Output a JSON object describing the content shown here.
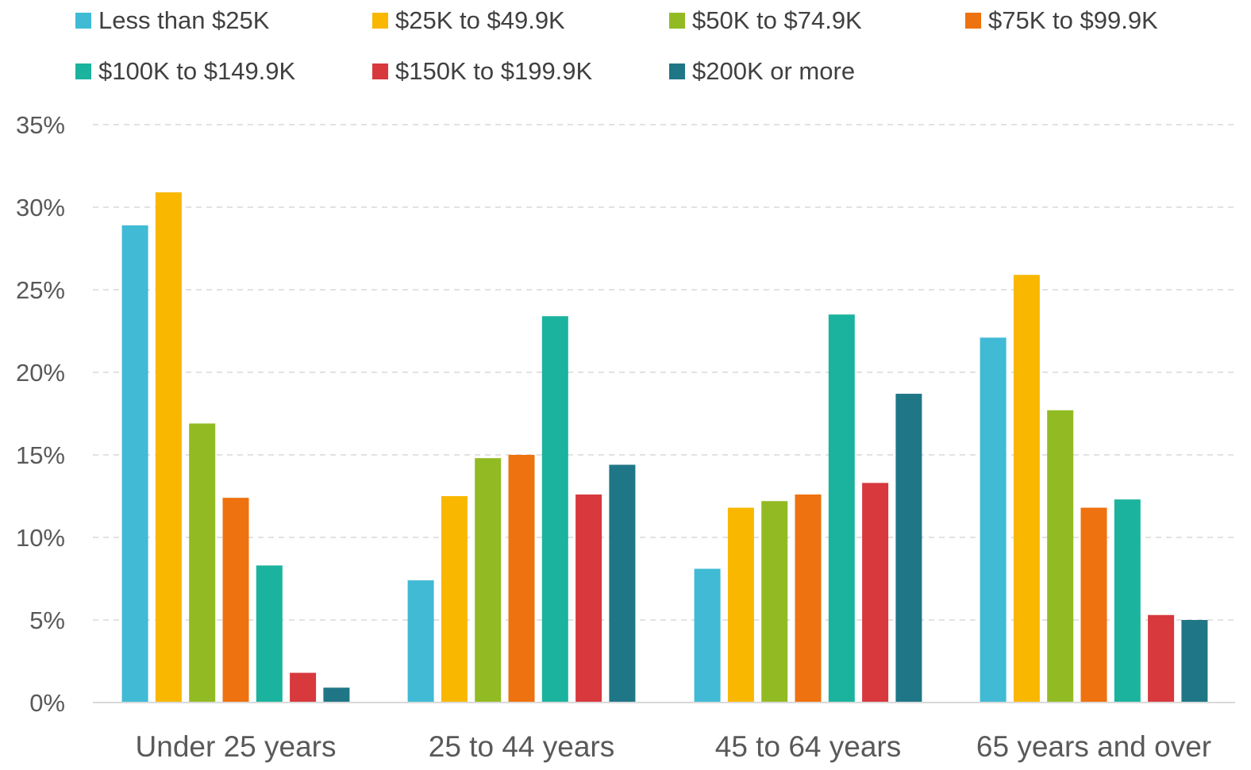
{
  "chart_data": {
    "type": "bar",
    "title": "",
    "xlabel": "",
    "ylabel": "",
    "ylim": [
      0,
      35
    ],
    "y_ticks": [
      0,
      5,
      10,
      15,
      20,
      25,
      30,
      35
    ],
    "y_tick_labels": [
      "0%",
      "5%",
      "10%",
      "15%",
      "20%",
      "25%",
      "30%",
      "35%"
    ],
    "grid": true,
    "legend_position": "top",
    "categories": [
      "Under 25 years",
      "25 to 44 years",
      "45 to 64 years",
      "65 years and over"
    ],
    "series": [
      {
        "name": "Less than $25K",
        "color": "#40BAD5",
        "values": [
          28.9,
          7.4,
          8.1,
          22.1
        ]
      },
      {
        "name": "$25K to $49.9K",
        "color": "#F9B700",
        "values": [
          30.9,
          12.5,
          11.8,
          25.9
        ]
      },
      {
        "name": "$50K to $74.9K",
        "color": "#92BB23",
        "values": [
          16.9,
          14.8,
          12.2,
          17.7
        ]
      },
      {
        "name": "$75K to $99.9K",
        "color": "#EE720F",
        "values": [
          12.4,
          15.0,
          12.6,
          11.8
        ]
      },
      {
        "name": "$100K to $149.9K",
        "color": "#1BB39E",
        "values": [
          8.3,
          23.4,
          23.5,
          12.3
        ]
      },
      {
        "name": "$150K to $199.9K",
        "color": "#D7393D",
        "values": [
          1.8,
          12.6,
          13.3,
          5.3
        ]
      },
      {
        "name": "$200K or more",
        "color": "#1F7686",
        "values": [
          0.9,
          14.4,
          18.7,
          5.0
        ]
      }
    ]
  }
}
